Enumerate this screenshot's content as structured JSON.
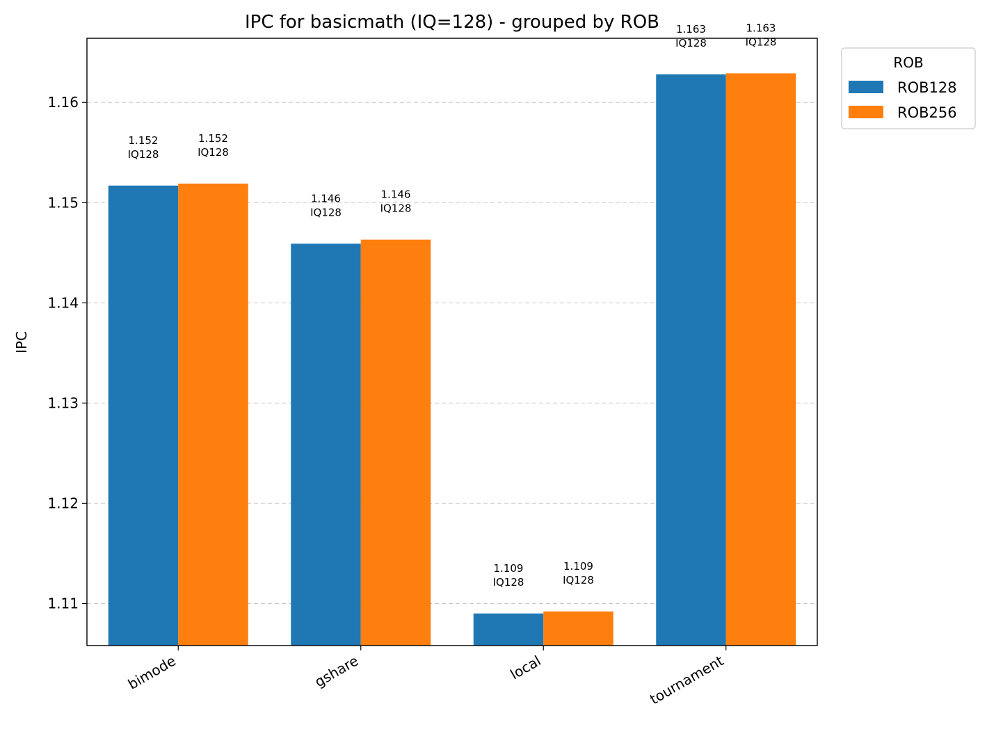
{
  "chart_data": {
    "type": "bar",
    "title": "IPC for basicmath (IQ=128) - grouped by ROB",
    "xlabel": "",
    "ylabel": "IPC",
    "ylim": [
      1.1058,
      1.1664
    ],
    "yticks": [
      "1.11",
      "1.12",
      "1.13",
      "1.14",
      "1.15",
      "1.16"
    ],
    "grid": "horizontal-dashed",
    "categories": [
      "bimode",
      "gshare",
      "local",
      "tournament"
    ],
    "series": [
      {
        "name": "ROB128",
        "color": "#1f77b4",
        "values": [
          1.1517,
          1.1459,
          1.109,
          1.1628
        ],
        "labels": [
          "1.152\nIQ128",
          "1.146\nIQ128",
          "1.109\nIQ128",
          "1.163\nIQ128"
        ]
      },
      {
        "name": "ROB256",
        "color": "#ff7f0e",
        "values": [
          1.1519,
          1.1463,
          1.1092,
          1.1629
        ],
        "labels": [
          "1.152\nIQ128",
          "1.146\nIQ128",
          "1.109\nIQ128",
          "1.163\nIQ128"
        ]
      }
    ],
    "legend": {
      "title": "ROB",
      "placement": "outside-top-right"
    }
  }
}
